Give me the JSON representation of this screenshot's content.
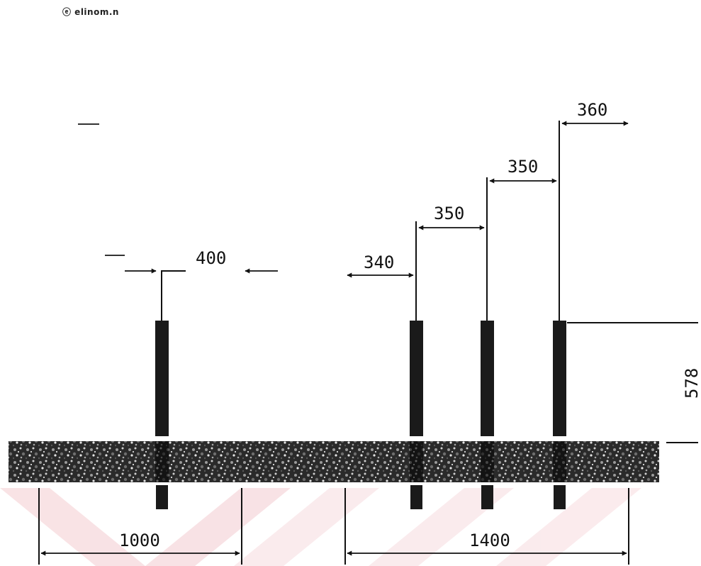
{
  "logo": {
    "text": "ⓔ elinom.n"
  },
  "dimensions": {
    "d400": "400",
    "d340": "340",
    "d350a": "350",
    "d350b": "350",
    "d360": "360",
    "d578": "578",
    "d1000": "1000",
    "d1400": "1400"
  },
  "colors": {
    "post": "#1a1a1a",
    "ink": "#111111",
    "watermark": "#f3c7cc"
  }
}
